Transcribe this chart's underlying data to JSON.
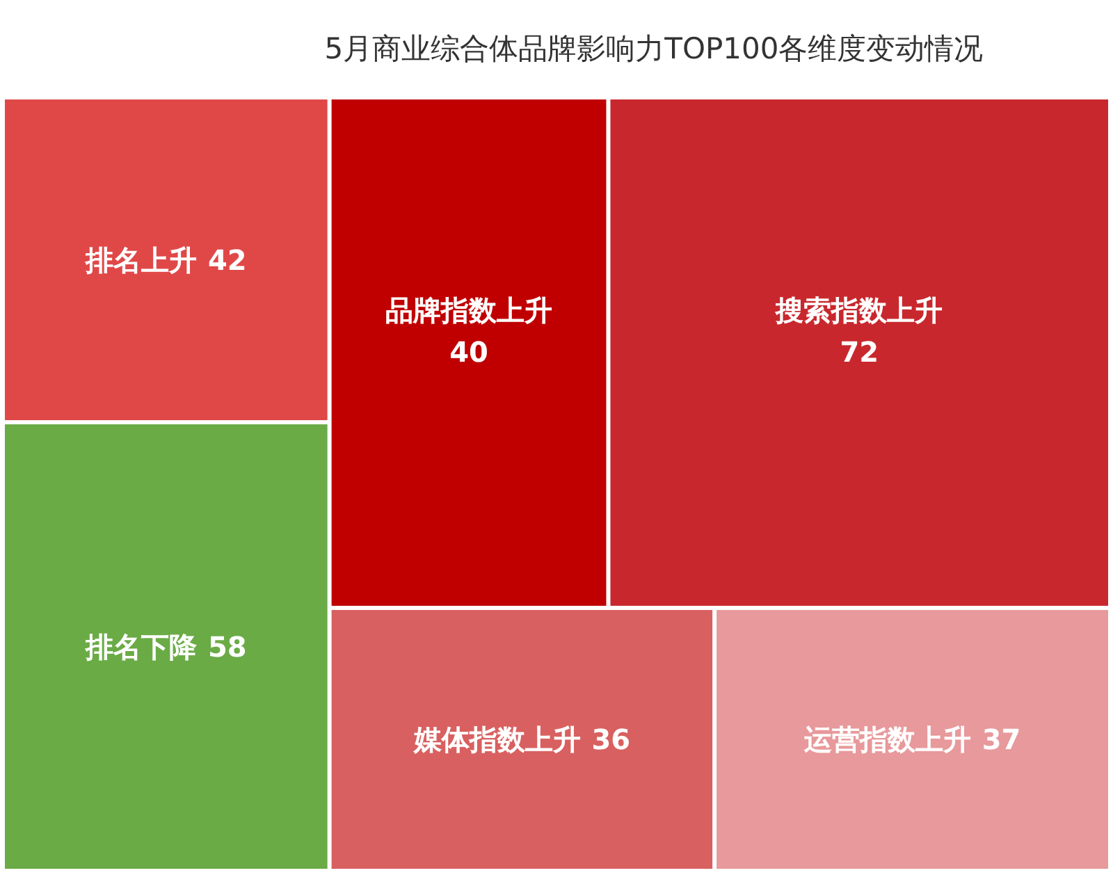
{
  "chart_data": {
    "type": "other",
    "title": "5月商业综合体品牌影响力TOP100各维度变动情况",
    "categories": [
      "排名上升",
      "排名下降",
      "品牌指数上升",
      "搜索指数上升",
      "媒体指数上升",
      "运营指数上升"
    ],
    "values": [
      42,
      58,
      40,
      72,
      36,
      37
    ],
    "colors": [
      "#e04848",
      "#6aab45",
      "#c00000",
      "#c8282d",
      "#d96060",
      "#e8999b"
    ],
    "data_labels": true
  }
}
